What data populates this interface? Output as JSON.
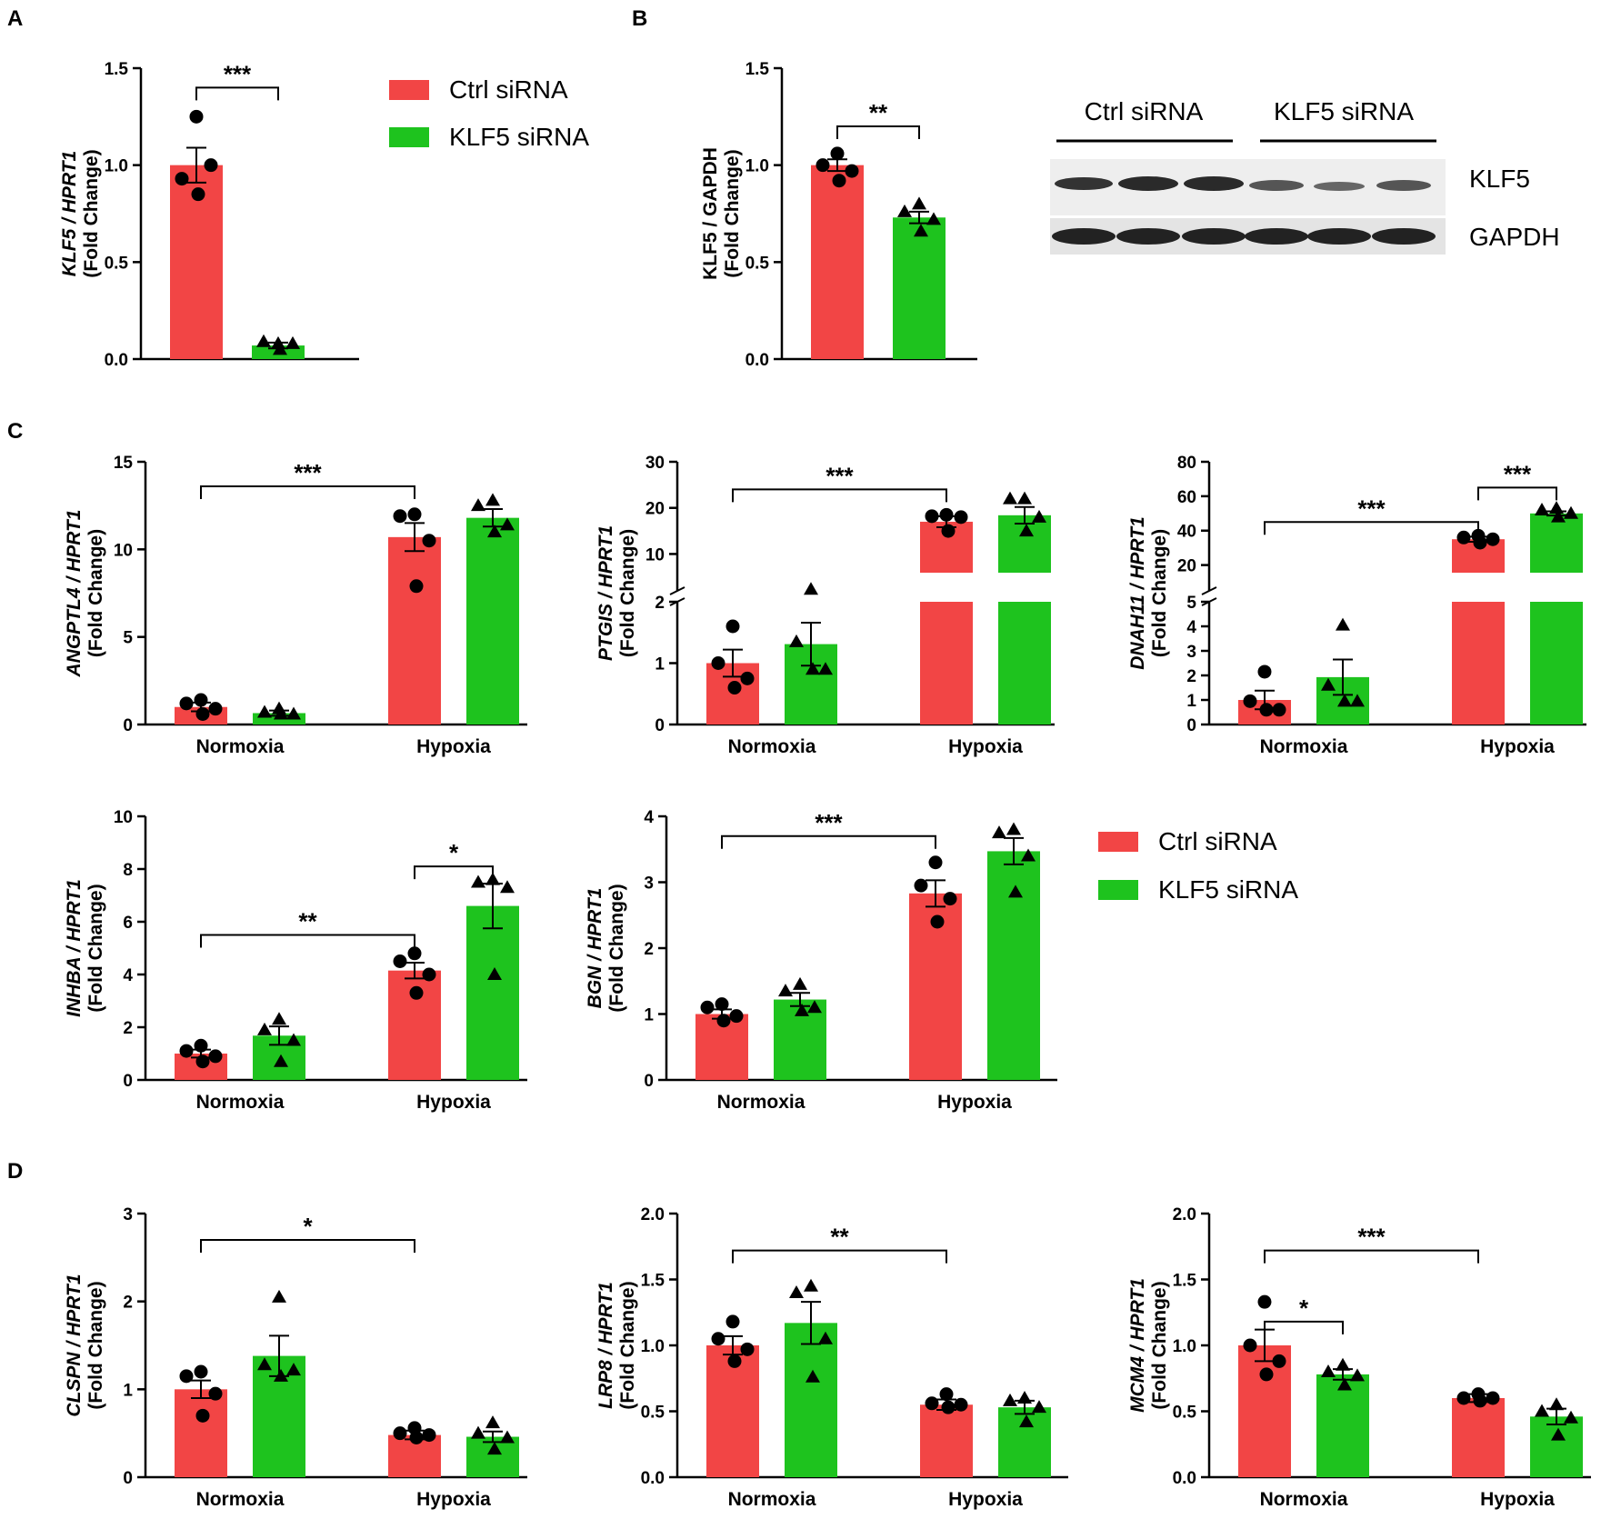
{
  "colors": {
    "ctrl": "#f24545",
    "klf5": "#1ec31e",
    "ink": "#000000"
  },
  "panel_letters": [
    "A",
    "B",
    "C",
    "D"
  ],
  "legend": {
    "ctrl": "Ctrl siRNA",
    "klf5": "KLF5 siRNA"
  },
  "western": {
    "groups": [
      "Ctrl siRNA",
      "KLF5 siRNA"
    ],
    "bands": [
      "KLF5",
      "GAPDH"
    ]
  },
  "chart_data": [
    {
      "id": "A",
      "type": "bar",
      "ylabel_gene": "KLF5 / HPRT1",
      "ylabel_sub": "(Fold Change)",
      "ylabel_italic": true,
      "ylim": [
        0,
        1.5
      ],
      "yticks": [
        "0.0",
        "0.5",
        "1.0",
        "1.5"
      ],
      "categories": [
        ""
      ],
      "series": [
        {
          "name": "Ctrl siRNA",
          "values": [
            1.0
          ],
          "sem": [
            0.09
          ],
          "points": [
            [
              1.25,
              0.93,
              1.0,
              0.85
            ]
          ],
          "marker": "circle"
        },
        {
          "name": "KLF5 siRNA",
          "values": [
            0.07
          ],
          "sem": [
            0.015
          ],
          "points": [
            [
              0.08,
              0.09,
              0.08,
              0.05
            ]
          ],
          "marker": "triangle"
        }
      ],
      "sig": [
        {
          "label": "***",
          "from": [
            0,
            0
          ],
          "to": [
            0,
            1
          ],
          "y": 1.4
        }
      ]
    },
    {
      "id": "B",
      "type": "bar",
      "ylabel_gene": "KLF5 / GAPDH",
      "ylabel_sub": "(Fold Change)",
      "ylabel_italic": false,
      "ylim": [
        0,
        1.5
      ],
      "yticks": [
        "0.0",
        "0.5",
        "1.0",
        "1.5"
      ],
      "categories": [
        ""
      ],
      "series": [
        {
          "name": "Ctrl siRNA",
          "values": [
            1.0
          ],
          "sem": [
            0.03
          ],
          "points": [
            [
              1.06,
              1.0,
              0.97,
              0.92
            ]
          ],
          "marker": "circle"
        },
        {
          "name": "KLF5 siRNA",
          "values": [
            0.73
          ],
          "sem": [
            0.03
          ],
          "points": [
            [
              0.8,
              0.76,
              0.72,
              0.66
            ]
          ],
          "marker": "triangle"
        }
      ],
      "sig": [
        {
          "label": "**",
          "from": [
            0,
            0
          ],
          "to": [
            0,
            1
          ],
          "y": 1.2
        }
      ]
    },
    {
      "id": "ANGPTL4",
      "type": "bar",
      "ylabel_gene": "ANGPTL4 / HPRT1",
      "ylabel_sub": "(Fold Change)",
      "ylabel_italic": true,
      "ylim": [
        0,
        15
      ],
      "yticks": [
        "0",
        "5",
        "10",
        "15"
      ],
      "categories": [
        "Normoxia",
        "Hypoxia"
      ],
      "series": [
        {
          "name": "Ctrl siRNA",
          "values": [
            1.0,
            10.7
          ],
          "sem": [
            0.25,
            0.8
          ],
          "points": [
            [
              1.4,
              1.2,
              0.9,
              0.6
            ],
            [
              12.0,
              11.9,
              10.5,
              7.9
            ]
          ],
          "marker": "circle"
        },
        {
          "name": "KLF5 siRNA",
          "values": [
            0.65,
            11.8
          ],
          "sem": [
            0.15,
            0.5
          ],
          "points": [
            [
              0.9,
              0.7,
              0.6,
              0.6
            ],
            [
              12.8,
              12.5,
              11.4,
              11.0
            ]
          ],
          "marker": "triangle"
        }
      ],
      "sig": [
        {
          "label": "***",
          "from": [
            0,
            0
          ],
          "to": [
            1,
            0
          ],
          "y": 13.6
        }
      ]
    },
    {
      "id": "PTGIS",
      "type": "bar",
      "ylabel_gene": "PTGIS / HPRT1",
      "ylabel_sub": "(Fold Change)",
      "ylabel_italic": true,
      "broken": {
        "low": [
          0,
          2
        ],
        "high": [
          2,
          30
        ]
      },
      "yticks_low": [
        "0",
        "1",
        "2"
      ],
      "yticks_high": [
        "10",
        "20",
        "30"
      ],
      "categories": [
        "Normoxia",
        "Hypoxia"
      ],
      "series": [
        {
          "name": "Ctrl siRNA",
          "values": [
            1.0,
            17.0
          ],
          "sem": [
            0.22,
            1.2
          ],
          "points": [
            [
              1.6,
              1.0,
              0.75,
              0.6
            ],
            [
              18.5,
              18.2,
              18.0,
              15.0
            ]
          ],
          "marker": "circle"
        },
        {
          "name": "KLF5 siRNA",
          "values": [
            1.31,
            18.4
          ],
          "sem": [
            0.35,
            1.8
          ],
          "points": [
            [
              2.35,
              1.35,
              0.9,
              0.9
            ],
            [
              22.0,
              22.0,
              18.0,
              15.0
            ]
          ],
          "marker": "triangle"
        }
      ],
      "sig": [
        {
          "label": "***",
          "from": [
            0,
            0
          ],
          "to": [
            1,
            0
          ],
          "y": 24.0
        }
      ]
    },
    {
      "id": "DNAH11",
      "type": "bar",
      "ylabel_gene": "DNAH11 / HPRT1",
      "ylabel_sub": "(Fold Change)",
      "ylabel_italic": true,
      "broken": {
        "low": [
          0,
          5
        ],
        "high": [
          5,
          80
        ]
      },
      "yticks_low": [
        "0",
        "1",
        "2",
        "3",
        "4",
        "5"
      ],
      "yticks_high": [
        "20",
        "40",
        "60",
        "80"
      ],
      "categories": [
        "Normoxia",
        "Hypoxia"
      ],
      "series": [
        {
          "name": "Ctrl siRNA",
          "values": [
            1.0,
            35.0
          ],
          "sem": [
            0.38,
            1.5
          ],
          "points": [
            [
              2.15,
              0.95,
              0.6,
              0.6
            ],
            [
              37.0,
              36.0,
              35.0,
              33.0
            ]
          ],
          "marker": "circle"
        },
        {
          "name": "KLF5 siRNA",
          "values": [
            1.93,
            50.0
          ],
          "sem": [
            0.72,
            1.2
          ],
          "points": [
            [
              4.05,
              1.6,
              0.95,
              0.95
            ],
            [
              53.0,
              52.0,
              50.0,
              48.0
            ]
          ],
          "marker": "triangle"
        }
      ],
      "sig": [
        {
          "label": "***",
          "from": [
            0,
            0
          ],
          "to": [
            1,
            0
          ],
          "y": 45.0
        },
        {
          "label": "***",
          "from": [
            1,
            0
          ],
          "to": [
            1,
            1
          ],
          "y": 65.0
        }
      ]
    },
    {
      "id": "INHBA",
      "type": "bar",
      "ylabel_gene": "INHBA / HPRT1",
      "ylabel_sub": "(Fold Change)",
      "ylabel_italic": true,
      "ylim": [
        0,
        10
      ],
      "yticks": [
        "0",
        "2",
        "4",
        "6",
        "8",
        "10"
      ],
      "categories": [
        "Normoxia",
        "Hypoxia"
      ],
      "series": [
        {
          "name": "Ctrl siRNA",
          "values": [
            1.0,
            4.15
          ],
          "sem": [
            0.15,
            0.3
          ],
          "points": [
            [
              1.3,
              1.1,
              0.9,
              0.7
            ],
            [
              4.8,
              4.5,
              4.0,
              3.3
            ]
          ],
          "marker": "circle"
        },
        {
          "name": "KLF5 siRNA",
          "values": [
            1.68,
            6.6
          ],
          "sem": [
            0.35,
            0.85
          ],
          "points": [
            [
              2.3,
              1.9,
              1.5,
              0.7
            ],
            [
              7.6,
              7.5,
              7.3,
              4.0
            ]
          ],
          "marker": "triangle"
        }
      ],
      "sig": [
        {
          "label": "**",
          "from": [
            0,
            0
          ],
          "to": [
            1,
            0
          ],
          "y": 5.5
        },
        {
          "label": "*",
          "from": [
            1,
            0
          ],
          "to": [
            1,
            1
          ],
          "y": 8.1
        }
      ]
    },
    {
      "id": "BGN",
      "type": "bar",
      "ylabel_gene": "BGN / HPRT1",
      "ylabel_sub": "(Fold Change)",
      "ylabel_italic": true,
      "ylim": [
        0,
        4
      ],
      "yticks": [
        "0",
        "1",
        "2",
        "3",
        "4"
      ],
      "categories": [
        "Normoxia",
        "Hypoxia"
      ],
      "series": [
        {
          "name": "Ctrl siRNA",
          "values": [
            1.0,
            2.83
          ],
          "sem": [
            0.07,
            0.2
          ],
          "points": [
            [
              1.15,
              1.1,
              0.97,
              0.9
            ],
            [
              3.3,
              2.95,
              2.75,
              2.4
            ]
          ],
          "marker": "circle"
        },
        {
          "name": "KLF5 siRNA",
          "values": [
            1.22,
            3.47
          ],
          "sem": [
            0.1,
            0.2
          ],
          "points": [
            [
              1.45,
              1.35,
              1.1,
              1.05
            ],
            [
              3.8,
              3.75,
              3.4,
              2.85
            ]
          ],
          "marker": "triangle"
        }
      ],
      "sig": [
        {
          "label": "***",
          "from": [
            0,
            0
          ],
          "to": [
            1,
            0
          ],
          "y": 3.7
        }
      ]
    },
    {
      "id": "CLSPN",
      "type": "bar",
      "ylabel_gene": "CLSPN / HPRT1",
      "ylabel_sub": "(Fold Change)",
      "ylabel_italic": true,
      "ylim": [
        0,
        3
      ],
      "yticks": [
        "0",
        "1",
        "2",
        "3"
      ],
      "categories": [
        "Normoxia",
        "Hypoxia"
      ],
      "series": [
        {
          "name": "Ctrl siRNA",
          "values": [
            1.0,
            0.48
          ],
          "sem": [
            0.1,
            0.05
          ],
          "points": [
            [
              1.2,
              1.15,
              0.95,
              0.7
            ],
            [
              0.56,
              0.5,
              0.48,
              0.45
            ]
          ],
          "marker": "circle"
        },
        {
          "name": "KLF5 siRNA",
          "values": [
            1.38,
            0.46
          ],
          "sem": [
            0.23,
            0.06
          ],
          "points": [
            [
              2.05,
              1.28,
              1.22,
              1.15
            ],
            [
              0.62,
              0.5,
              0.45,
              0.32
            ]
          ],
          "marker": "triangle"
        }
      ],
      "sig": [
        {
          "label": "*",
          "from": [
            0,
            0
          ],
          "to": [
            1,
            0
          ],
          "y": 2.7
        }
      ]
    },
    {
      "id": "LRP8",
      "type": "bar",
      "ylabel_gene": "LRP8 / HPRT1",
      "ylabel_sub": "(Fold Change)",
      "ylabel_italic": true,
      "ylim": [
        0,
        2.0
      ],
      "yticks": [
        "0.0",
        "0.5",
        "1.0",
        "1.5",
        "2.0"
      ],
      "categories": [
        "Normoxia",
        "Hypoxia"
      ],
      "series": [
        {
          "name": "Ctrl siRNA",
          "values": [
            1.0,
            0.55
          ],
          "sem": [
            0.07,
            0.04
          ],
          "points": [
            [
              1.18,
              1.05,
              0.97,
              0.88
            ],
            [
              0.63,
              0.56,
              0.55,
              0.53
            ]
          ],
          "marker": "circle"
        },
        {
          "name": "KLF5 siRNA",
          "values": [
            1.17,
            0.53
          ],
          "sem": [
            0.16,
            0.05
          ],
          "points": [
            [
              1.45,
              1.4,
              1.05,
              0.76
            ],
            [
              0.6,
              0.58,
              0.53,
              0.42
            ]
          ],
          "marker": "triangle"
        }
      ],
      "sig": [
        {
          "label": "**",
          "from": [
            0,
            0
          ],
          "to": [
            1,
            0
          ],
          "y": 1.72
        }
      ]
    },
    {
      "id": "MCM4",
      "type": "bar",
      "ylabel_gene": "MCM4 / HPRT1",
      "ylabel_sub": "(Fold Change)",
      "ylabel_italic": true,
      "ylim": [
        0,
        2.0
      ],
      "yticks": [
        "0.0",
        "0.5",
        "1.0",
        "1.5",
        "2.0"
      ],
      "categories": [
        "Normoxia",
        "Hypoxia"
      ],
      "series": [
        {
          "name": "Ctrl siRNA",
          "values": [
            1.0,
            0.6
          ],
          "sem": [
            0.12,
            0.03
          ],
          "points": [
            [
              1.33,
              1.0,
              0.88,
              0.78
            ],
            [
              0.63,
              0.6,
              0.6,
              0.58
            ]
          ],
          "marker": "circle"
        },
        {
          "name": "KLF5 siRNA",
          "values": [
            0.78,
            0.46
          ],
          "sem": [
            0.04,
            0.06
          ],
          "points": [
            [
              0.85,
              0.8,
              0.77,
              0.7
            ],
            [
              0.55,
              0.5,
              0.45,
              0.32
            ]
          ],
          "marker": "triangle"
        }
      ],
      "sig": [
        {
          "label": "*",
          "from": [
            0,
            0
          ],
          "to": [
            0,
            1
          ],
          "y": 1.18
        },
        {
          "label": "***",
          "from": [
            0,
            0
          ],
          "to": [
            1,
            0
          ],
          "y": 1.72
        }
      ]
    }
  ]
}
